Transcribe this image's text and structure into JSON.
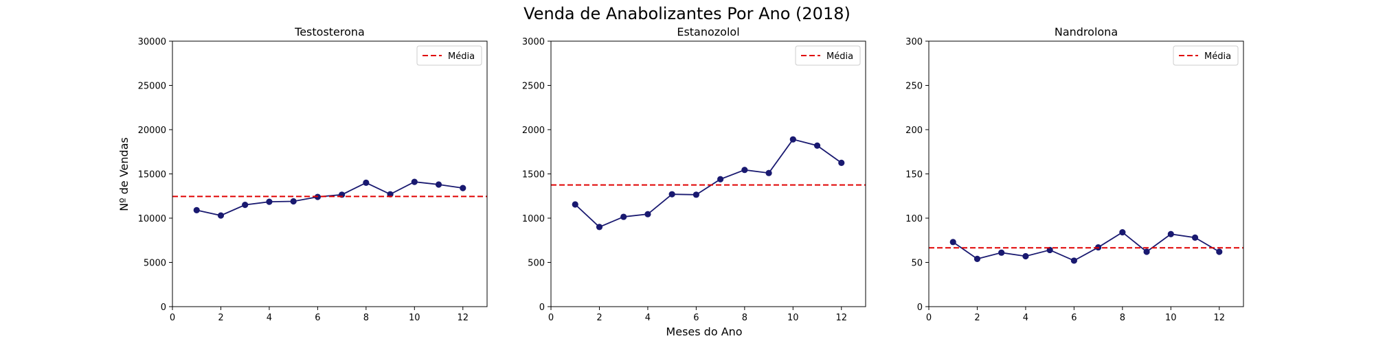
{
  "figure": {
    "title": "Venda de Anabolizantes Por Ano (2018)",
    "xlabel": "Meses do Ano",
    "ylabel": "Nº de Vendas"
  },
  "colors": {
    "series": "#191970",
    "mean": "#e00000",
    "axes": "#000000"
  },
  "chart_data": [
    {
      "type": "line",
      "title": "Testosterona",
      "x": [
        1,
        2,
        3,
        4,
        5,
        6,
        7,
        8,
        9,
        10,
        11,
        12
      ],
      "xticks": [
        0,
        2,
        4,
        6,
        8,
        10,
        12
      ],
      "xlim": [
        0,
        13
      ],
      "yticks": [
        0,
        5000,
        10000,
        15000,
        20000,
        25000,
        30000
      ],
      "ylim": [
        0,
        30000
      ],
      "values": [
        10900,
        10300,
        11500,
        11850,
        11900,
        12400,
        12650,
        14000,
        12700,
        14100,
        13800,
        13400
      ],
      "mean": 12450,
      "legend": {
        "label": "Média",
        "placement": "top-right"
      },
      "grid": false
    },
    {
      "type": "line",
      "title": "Estanozolol",
      "x": [
        1,
        2,
        3,
        4,
        5,
        6,
        7,
        8,
        9,
        10,
        11,
        12
      ],
      "xticks": [
        0,
        2,
        4,
        6,
        8,
        10,
        12
      ],
      "xlim": [
        0,
        13
      ],
      "yticks": [
        0,
        500,
        1000,
        1500,
        2000,
        2500,
        3000
      ],
      "ylim": [
        0,
        3000
      ],
      "values": [
        1155,
        900,
        1015,
        1045,
        1270,
        1265,
        1440,
        1545,
        1510,
        1890,
        1820,
        1625
      ],
      "mean": 1375,
      "legend": {
        "label": "Média",
        "placement": "top-right"
      },
      "grid": false
    },
    {
      "type": "line",
      "title": "Nandrolona",
      "x": [
        1,
        2,
        3,
        4,
        5,
        6,
        7,
        8,
        9,
        10,
        11,
        12
      ],
      "xticks": [
        0,
        2,
        4,
        6,
        8,
        10,
        12
      ],
      "xlim": [
        0,
        13
      ],
      "yticks": [
        0,
        50,
        100,
        150,
        200,
        250,
        300
      ],
      "ylim": [
        0,
        300
      ],
      "values": [
        73,
        54,
        61,
        57,
        64,
        52,
        67,
        84,
        62,
        82,
        78,
        62
      ],
      "mean": 66.5,
      "legend": {
        "label": "Média",
        "placement": "top-right"
      },
      "grid": false
    }
  ]
}
